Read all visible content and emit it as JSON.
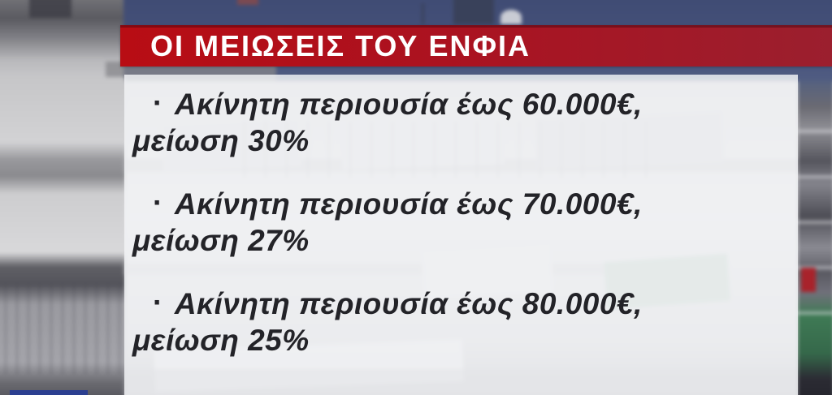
{
  "banner": {
    "title": "ΟΙ ΜΕΙΩΣΕΙΣ ΤΟΥ ΕΝΦΙΑ"
  },
  "list": {
    "items": [
      {
        "bullet": "·",
        "line1": "Ακίνητη περιουσία έως 60.000€,",
        "line2": "μείωση 30%"
      },
      {
        "bullet": "·",
        "line1": "Ακίνητη περιουσία έως 70.000€,",
        "line2": "μείωση 27%"
      },
      {
        "bullet": "·",
        "line1": "Ακίνητη περιουσία έως 80.000€,",
        "line2": "μείωση 25%"
      }
    ]
  },
  "colors": {
    "banner_red_left": "#b80d14",
    "banner_red_right": "#9b1f2e",
    "banner_text": "#ffffff",
    "panel_bg": "#ededee",
    "body_text": "#232328",
    "sky_blue": "#45517a",
    "logo_blue": "#2b3f90",
    "awning_green": "#9fbca9"
  }
}
